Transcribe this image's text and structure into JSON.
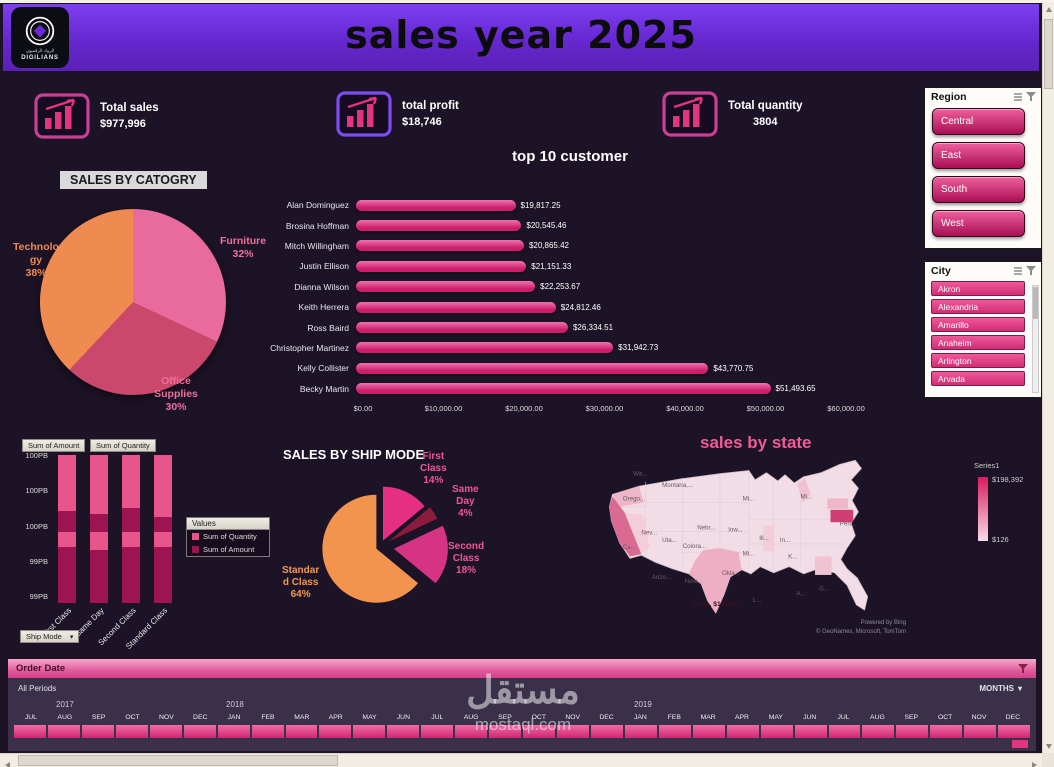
{
  "header": {
    "title": "sales year 2025",
    "logo": {
      "brand": "DIGILIANS",
      "arabic": "الرواد الرقميون"
    }
  },
  "kpis": [
    {
      "label": "Total sales",
      "value": "$977,996"
    },
    {
      "label": "total profit",
      "value": "$18,746"
    },
    {
      "label": "Total quantity",
      "value": "3804"
    }
  ],
  "slicers": {
    "region": {
      "title": "Region",
      "items": [
        "Central",
        "East",
        "South",
        "West"
      ]
    },
    "city": {
      "title": "City",
      "items": [
        "Akron",
        "Alexandria",
        "Amarillo",
        "Anaheim",
        "Arlington",
        "Arvada"
      ]
    }
  },
  "pivot_buttons": {
    "amount": "Sum of Amount",
    "quantity": "Sum of Quantity",
    "values_header": "Values",
    "ship_mode": "Ship Mode"
  },
  "legend_entries": [
    {
      "label": "Sum of Quantity",
      "color": "#e8558a"
    },
    {
      "label": "Sum of Amount",
      "color": "#9c1550"
    }
  ],
  "timeline": {
    "title": "Order Date",
    "period_label": "All Periods",
    "granularity": "MONTHS",
    "years": [
      {
        "label": "2017",
        "x": 48
      },
      {
        "label": "2018",
        "x": 218
      },
      {
        "label": "2019",
        "x": 626
      }
    ],
    "months": [
      "JUL",
      "AUG",
      "SEP",
      "OCT",
      "NOV",
      "DEC",
      "JAN",
      "FEB",
      "MAR",
      "APR",
      "MAY",
      "JUN",
      "JUL",
      "AUG",
      "SEP",
      "OCT",
      "NOV",
      "DEC",
      "JAN",
      "FEB",
      "MAR",
      "APR",
      "MAY",
      "JUN",
      "JUL",
      "AUG",
      "SEP",
      "OCT",
      "NOV",
      "DEC"
    ]
  },
  "watermark": {
    "arabic": "مستقل",
    "latin": "mostaql.com"
  },
  "chart_data": [
    {
      "id": "sales_by_category",
      "type": "pie",
      "title": "SALES BY CATOGRY",
      "labels": [
        "Furniture",
        "Office Supplies",
        "Technology"
      ],
      "values": [
        32,
        30,
        38
      ],
      "colors": [
        "#e96b9d",
        "#c9486b",
        "#ef8a50"
      ],
      "label_texts": [
        "Furniture\n32%",
        "Office\nSupplies\n30%",
        "Technolo\ngy\n38%"
      ]
    },
    {
      "id": "top10_customers",
      "type": "bar",
      "orientation": "horizontal",
      "title": "top 10 customer",
      "categories": [
        "Alan Dominguez",
        "Brosina Hoffman",
        "Mitch Willingham",
        "Justin Ellison",
        "Dianna Wilson",
        "Keith Herrera",
        "Ross Baird",
        "Christopher Martinez",
        "Kelly Collister",
        "Becky Martin"
      ],
      "values": [
        19817.25,
        20545.46,
        20865.42,
        21151.33,
        22253.67,
        24812.46,
        26334.51,
        31942.73,
        43770.75,
        51493.65
      ],
      "value_labels": [
        "$19,817.25",
        "$20,545.46",
        "$20,865.42",
        "$21,151.33",
        "$22,253.67",
        "$24,812.46",
        "$26,334.51",
        "$31,942.73",
        "$43,770.75",
        "$51,493.65"
      ],
      "xlim": [
        0,
        60000
      ],
      "x_ticks": [
        "$0.00",
        "$10,000.00",
        "$20,000.00",
        "$30,000.00",
        "$40,000.00",
        "$50,000.00",
        "$60,000.00"
      ],
      "bar_color": "#d63384"
    },
    {
      "id": "sales_by_ship_mode",
      "type": "pie",
      "title": "SALES BY SHIP MODE",
      "labels": [
        "First Class",
        "Same Day",
        "Second Class",
        "Standard Class"
      ],
      "values": [
        14,
        4,
        18,
        64
      ],
      "colors": [
        "#e62e84",
        "#8c1c3d",
        "#d63384",
        "#f2944e"
      ],
      "explode": [
        7,
        10,
        14,
        4
      ],
      "label_texts": [
        "First\nClass\n14%",
        "Same\nDay\n4%",
        "Second\nClass\n18%",
        "Standar\nd Class\n64%"
      ]
    },
    {
      "id": "ship_mode_stacked",
      "type": "bar",
      "subtype": "stacked",
      "categories": [
        "First Class",
        "Same Day",
        "Second Class",
        "Standard Class"
      ],
      "y_ticks": [
        "100PB",
        "100PB",
        "100PB",
        "99PB",
        "99PB"
      ],
      "series": [
        {
          "name": "Sum of Quantity",
          "color": "#e8558a"
        },
        {
          "name": "Sum of Amount",
          "color": "#9c1550"
        }
      ],
      "segments": [
        [
          [
            "p",
            0.38
          ],
          [
            "d",
            0.14
          ],
          [
            "p",
            0.1
          ],
          [
            "d",
            0.38
          ]
        ],
        [
          [
            "p",
            0.4
          ],
          [
            "d",
            0.12
          ],
          [
            "p",
            0.12
          ],
          [
            "d",
            0.36
          ]
        ],
        [
          [
            "p",
            0.36
          ],
          [
            "d",
            0.16
          ],
          [
            "p",
            0.1
          ],
          [
            "d",
            0.38
          ]
        ],
        [
          [
            "p",
            0.42
          ],
          [
            "d",
            0.1
          ],
          [
            "p",
            0.1
          ],
          [
            "d",
            0.38
          ]
        ]
      ]
    },
    {
      "id": "sales_by_state",
      "type": "heatmap",
      "title": "sales by state",
      "legend": {
        "name": "Series1",
        "max": "$198,392",
        "min": "$126"
      },
      "attribution": [
        "Powered by Bing",
        "© GeoNames, Microsoft, TomTom"
      ],
      "highlight": "Texas, $119,213",
      "state_labels": [
        {
          "t": "Wa...",
          "x": 34,
          "y": 22
        },
        {
          "t": "Montana,...",
          "x": 62,
          "y": 33
        },
        {
          "t": "Orego...",
          "x": 24,
          "y": 46
        },
        {
          "t": "Nev...",
          "x": 42,
          "y": 79
        },
        {
          "t": "Uta...",
          "x": 62,
          "y": 86
        },
        {
          "t": "Ca...",
          "x": 24,
          "y": 93
        },
        {
          "t": "Colora...",
          "x": 82,
          "y": 92
        },
        {
          "t": "Nebr...",
          "x": 96,
          "y": 74
        },
        {
          "t": "Iow...",
          "x": 126,
          "y": 76
        },
        {
          "t": "Mi...",
          "x": 140,
          "y": 46
        },
        {
          "t": "Mi...",
          "x": 196,
          "y": 44
        },
        {
          "t": "Ill...",
          "x": 156,
          "y": 84
        },
        {
          "t": "In...",
          "x": 176,
          "y": 86
        },
        {
          "t": "K...",
          "x": 184,
          "y": 102
        },
        {
          "t": "Mi...",
          "x": 140,
          "y": 99
        },
        {
          "t": "Okla...",
          "x": 120,
          "y": 118
        },
        {
          "t": "Arizo...",
          "x": 52,
          "y": 122
        },
        {
          "t": "New...",
          "x": 84,
          "y": 126
        },
        {
          "t": "L...",
          "x": 150,
          "y": 144
        },
        {
          "t": "A...",
          "x": 192,
          "y": 138
        },
        {
          "t": "G...",
          "x": 214,
          "y": 133
        },
        {
          "t": "Pen...",
          "x": 234,
          "y": 70
        },
        {
          "t": "Texas, $119,213",
          "x": 90,
          "y": 148,
          "em": true
        }
      ]
    }
  ]
}
